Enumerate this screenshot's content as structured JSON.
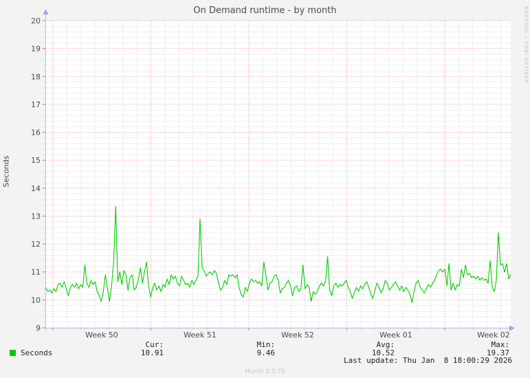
{
  "title": "On Demand runtime - by month",
  "watermark": "RRDTOOL / TOBI OETIKER",
  "footer": "Munin 2.0.75",
  "y_axis_label": "Seconds",
  "legend": {
    "series_label": "Seconds",
    "series_color": "#00cc00",
    "columns": [
      {
        "label": "Cur:",
        "value": "10.91"
      },
      {
        "label": "Min:",
        "value": "9.46"
      },
      {
        "label": "Avg:",
        "value": "10.52"
      },
      {
        "label": "Max:",
        "value": "19.37"
      }
    ],
    "last_update": "Last update: Thu Jan  8 18:00:29 2026"
  },
  "chart_data": {
    "type": "line",
    "title": "On Demand runtime - by month",
    "xlabel": "",
    "ylabel": "Seconds",
    "ylim": [
      9,
      20
    ],
    "y_ticks": [
      9,
      10,
      11,
      12,
      13,
      14,
      15,
      16,
      17,
      18,
      19,
      20
    ],
    "x_tick_labels": [
      "Week 50",
      "Week 51",
      "Week 52",
      "Week 01",
      "Week 02"
    ],
    "grid": {
      "shown": true,
      "major_color": "#ee8f8f",
      "minor_color": "#d0d0d0",
      "axis_color": "#b6bfec",
      "arrow_color": "#9aa8e6",
      "minor_y_step": 0.2,
      "major_y_step": 1,
      "minor_x_divisions_per_week": 7
    },
    "legend_position": "bottom",
    "series": [
      {
        "name": "Seconds",
        "color": "#00cc00",
        "unit": "seconds",
        "values": [
          10.45,
          10.3,
          10.35,
          10.25,
          10.4,
          10.3,
          10.55,
          10.6,
          10.45,
          10.65,
          10.4,
          10.15,
          10.45,
          10.55,
          10.45,
          10.6,
          10.4,
          10.55,
          10.45,
          11.25,
          10.6,
          10.45,
          10.7,
          10.55,
          10.65,
          10.3,
          10.15,
          9.95,
          10.3,
          10.9,
          10.4,
          9.95,
          10.5,
          11.35,
          13.35,
          10.65,
          11.0,
          10.55,
          11.05,
          10.9,
          10.35,
          10.8,
          10.9,
          10.35,
          10.45,
          10.7,
          11.15,
          10.6,
          11.0,
          11.35,
          10.5,
          10.1,
          10.45,
          10.6,
          10.35,
          10.5,
          10.3,
          10.55,
          10.45,
          10.75,
          10.55,
          10.9,
          10.75,
          10.85,
          10.6,
          10.5,
          10.85,
          10.7,
          10.55,
          10.6,
          10.45,
          10.7,
          10.55,
          10.7,
          10.85,
          12.9,
          11.15,
          11.05,
          10.85,
          10.95,
          11.0,
          10.9,
          11.05,
          10.95,
          10.6,
          10.35,
          10.45,
          10.7,
          10.55,
          10.9,
          10.85,
          10.9,
          10.8,
          10.9,
          10.45,
          10.2,
          10.1,
          10.45,
          10.3,
          10.6,
          10.75,
          10.65,
          10.7,
          10.6,
          10.65,
          10.5,
          11.35,
          10.9,
          10.35,
          10.6,
          10.65,
          10.85,
          10.9,
          10.7,
          10.25,
          10.4,
          10.45,
          10.6,
          10.7,
          10.5,
          10.15,
          10.45,
          10.5,
          10.3,
          10.4,
          11.25,
          10.4,
          10.55,
          10.45,
          9.95,
          10.3,
          10.2,
          10.3,
          10.5,
          10.6,
          10.5,
          10.65,
          11.55,
          10.35,
          10.15,
          10.5,
          10.6,
          10.45,
          10.55,
          10.5,
          10.6,
          10.7,
          10.45,
          10.3,
          10.05,
          10.25,
          10.45,
          10.3,
          10.5,
          10.4,
          10.55,
          10.65,
          10.45,
          10.2,
          10.05,
          10.35,
          10.6,
          10.45,
          10.25,
          10.4,
          10.7,
          10.6,
          10.35,
          10.45,
          10.55,
          10.65,
          10.5,
          10.35,
          10.5,
          10.3,
          10.45,
          10.35,
          10.2,
          9.9,
          10.3,
          10.6,
          10.7,
          10.45,
          10.35,
          10.25,
          10.4,
          10.55,
          10.45,
          10.6,
          10.7,
          10.9,
          11.05,
          11.1,
          11.0,
          11.1,
          10.5,
          11.3,
          10.35,
          10.6,
          10.35,
          10.55,
          10.5,
          11.1,
          10.8,
          11.25,
          10.9,
          10.95,
          10.8,
          10.85,
          10.75,
          10.85,
          10.7,
          10.8,
          10.7,
          10.75,
          10.6,
          11.4,
          10.45,
          10.3,
          10.7,
          12.4,
          11.25,
          11.3,
          11.0,
          11.3,
          10.75,
          10.91
        ]
      }
    ],
    "stats": {
      "cur": 10.91,
      "min": 9.46,
      "avg": 10.52,
      "max": 19.37
    }
  }
}
